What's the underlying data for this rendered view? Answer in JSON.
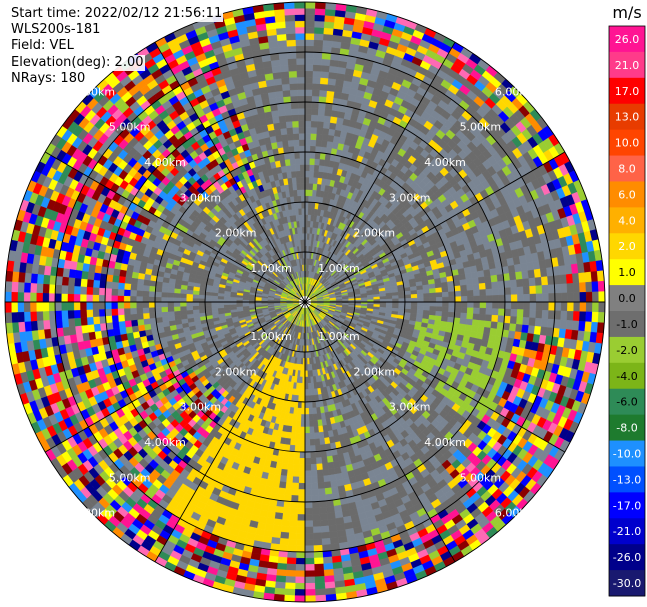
{
  "header": {
    "start_time": "Start time: 2022/02/12 21:56:11",
    "instrument": "WLS200s-181",
    "field": "Field: VEL",
    "elevation": "Elevation(deg): 2.00",
    "nrays": "NRays: 180"
  },
  "chart_data": {
    "type": "heatmap",
    "projection": "polar",
    "n_rays": 180,
    "range_rings": [
      "1.00km",
      "2.00km",
      "3.00km",
      "4.00km",
      "5.00km",
      "6.00km"
    ],
    "range_ring_values_km": [
      1,
      2,
      3,
      4,
      5,
      6
    ],
    "max_range_km": 6,
    "spokes_deg": [
      0,
      30,
      60,
      90,
      120,
      150,
      180,
      210,
      240,
      270,
      300,
      330
    ],
    "colorbar": {
      "unit": "m/s",
      "ticks": [
        "26.0",
        "21.0",
        "17.0",
        "13.0",
        "10.0",
        "8.0",
        "6.0",
        "4.0",
        "2.0",
        "1.0",
        "0.0",
        "-1.0",
        "-2.0",
        "-4.0",
        "-6.0",
        "-8.0",
        "-10.0",
        "-13.0",
        "-17.0",
        "-21.0",
        "-26.0",
        "-30.0"
      ],
      "colors": [
        "#ff1493",
        "#ff3b8a",
        "#ff0000",
        "#e83c00",
        "#ff4500",
        "#ff6347",
        "#ff8c00",
        "#ffb000",
        "#ffd700",
        "#ffff00",
        "#808080",
        "#6e6e6e",
        "#9acd32",
        "#7cb518",
        "#2e8b57",
        "#1e7b2e",
        "#1e90ff",
        "#0050ff",
        "#0000ff",
        "#0000cd",
        "#00008b",
        "#191970"
      ],
      "range": [
        -30,
        30
      ]
    },
    "colors": {
      "background_gray": "#7a8593",
      "dark_gray": "#6b6b6b",
      "near_zero_positive": "#ffd700",
      "near_zero_negative": "#9acd32"
    }
  }
}
